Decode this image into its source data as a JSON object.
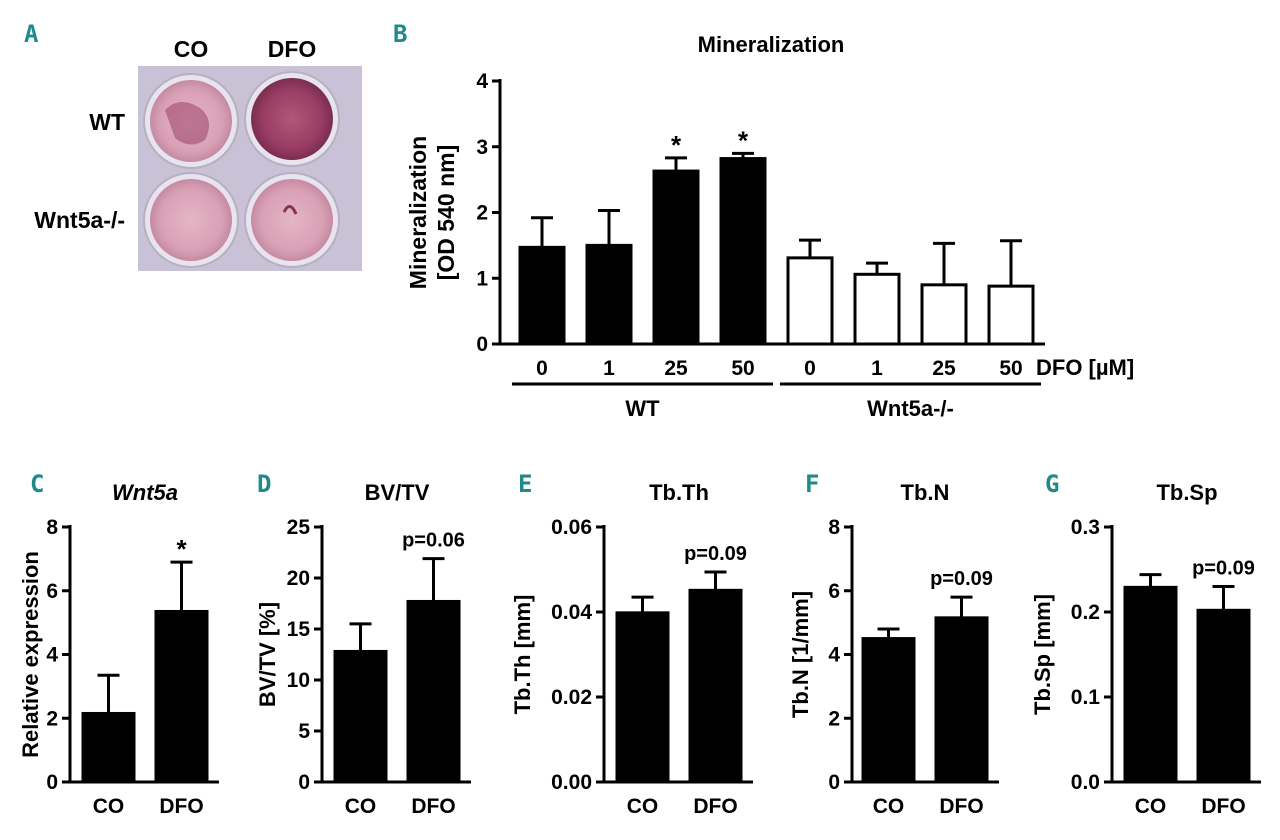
{
  "photo": {
    "column_labels": [
      "CO",
      "DFO"
    ],
    "row_labels": [
      "WT",
      "Wnt5a-/-"
    ]
  },
  "chart_data": [
    {
      "panel": "B",
      "type": "bar",
      "title": "Mineralization",
      "ylabel": "Mineralization",
      "ylabel2": "[OD 540 nm]",
      "xlabel": "DFO [µM]",
      "ylim": [
        0,
        4
      ],
      "yticks": [
        0,
        1,
        2,
        3,
        4
      ],
      "categories": [
        "0",
        "1",
        "25",
        "50",
        "0",
        "1",
        "25",
        "50"
      ],
      "groups": [
        {
          "name": "WT",
          "start": 0,
          "end": 3,
          "fill": "#000000"
        },
        {
          "name": "Wnt5a-/-",
          "start": 4,
          "end": 7,
          "fill": "#ffffff"
        }
      ],
      "values": [
        1.47,
        1.5,
        2.63,
        2.82,
        1.31,
        1.06,
        0.9,
        0.88
      ],
      "errors": [
        0.45,
        0.53,
        0.2,
        0.08,
        0.27,
        0.17,
        0.63,
        0.69
      ],
      "annotations": [
        "",
        "",
        "*",
        "*",
        "",
        "",
        "",
        ""
      ]
    },
    {
      "panel": "C",
      "type": "bar",
      "title": "Wnt5a",
      "title_italic": true,
      "ylabel": "Relative expression",
      "ylim": [
        0,
        8
      ],
      "yticks": [
        "0",
        "2",
        "4",
        "6",
        "8"
      ],
      "categories": [
        "CO",
        "DFO"
      ],
      "values": [
        2.15,
        5.35
      ],
      "errors": [
        1.2,
        1.55
      ],
      "annotation": "*"
    },
    {
      "panel": "D",
      "type": "bar",
      "title": "BV/TV",
      "ylabel": "BV/TV [%]",
      "ylim": [
        0,
        25
      ],
      "yticks": [
        "0",
        "5",
        "10",
        "15",
        "20",
        "25"
      ],
      "categories": [
        "CO",
        "DFO"
      ],
      "values": [
        12.8,
        17.7
      ],
      "errors": [
        2.7,
        4.2
      ],
      "annotation": "p=0.06"
    },
    {
      "panel": "E",
      "type": "bar",
      "title": "Tb.Th",
      "ylabel": "Tb.Th [mm]",
      "ylim": [
        0,
        0.06
      ],
      "yticks": [
        "0.00",
        "0.02",
        "0.04",
        "0.06"
      ],
      "categories": [
        "CO",
        "DFO"
      ],
      "values": [
        0.0398,
        0.0451
      ],
      "errors": [
        0.0037,
        0.0043
      ],
      "annotation": "p=0.09"
    },
    {
      "panel": "F",
      "type": "bar",
      "title": "Tb.N",
      "ylabel": "Tb.N [1/mm]",
      "ylim": [
        0,
        8
      ],
      "yticks": [
        "0",
        "2",
        "4",
        "6",
        "8"
      ],
      "categories": [
        "CO",
        "DFO"
      ],
      "values": [
        4.5,
        5.15
      ],
      "errors": [
        0.3,
        0.65
      ],
      "annotation": "p=0.09"
    },
    {
      "panel": "G",
      "type": "bar",
      "title": "Tb.Sp",
      "ylabel": "Tb.Sp [mm]",
      "ylim": [
        0,
        0.3
      ],
      "yticks": [
        "0.0",
        "0.1",
        "0.2",
        "0.3"
      ],
      "categories": [
        "CO",
        "DFO"
      ],
      "values": [
        0.229,
        0.202
      ],
      "errors": [
        0.015,
        0.028
      ],
      "annotation": "p=0.09"
    }
  ]
}
